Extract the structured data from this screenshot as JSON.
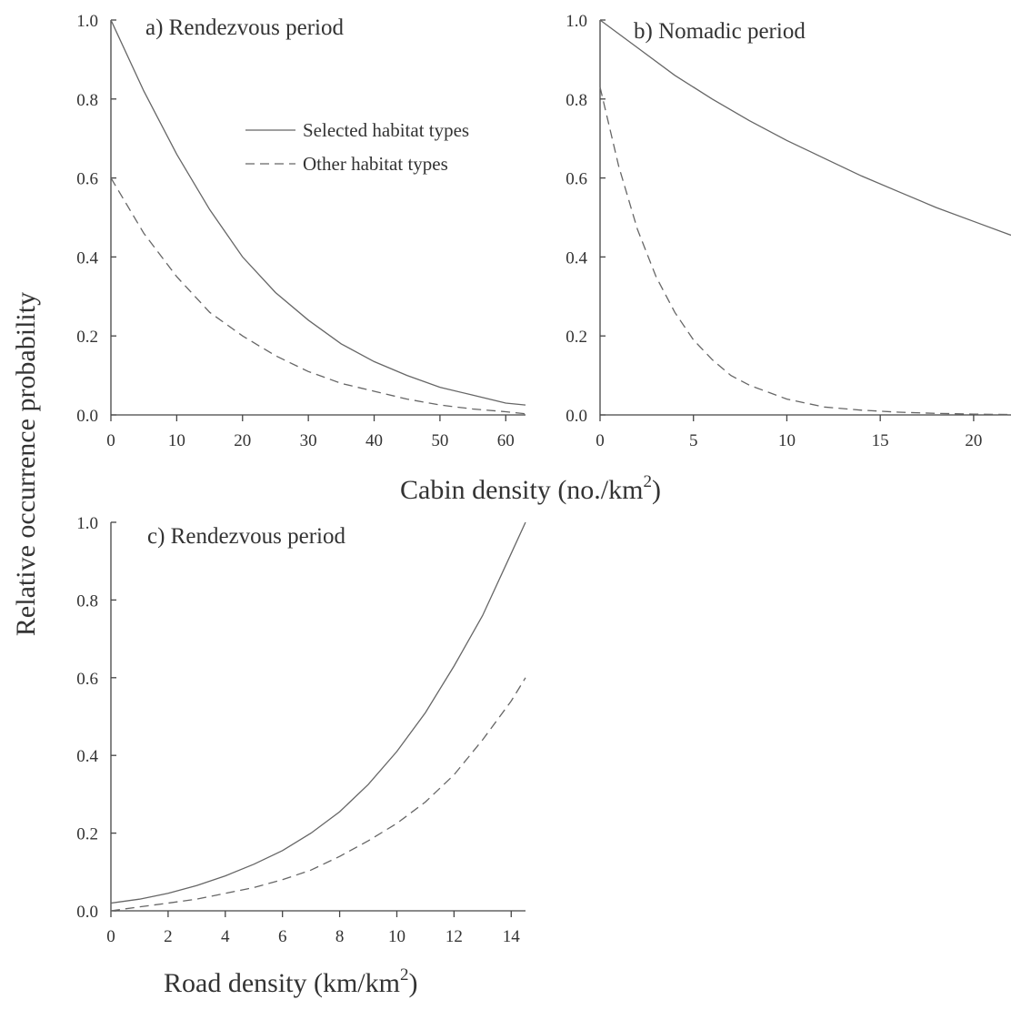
{
  "shared": {
    "ylabel": "Relative occurrence probability",
    "top_xlabel": "Cabin density (no./km",
    "top_xlabel_sup": "2",
    "top_xlabel_end": ")",
    "legend": {
      "solid": "Selected habitat types",
      "dashed": "Other habitat types"
    }
  },
  "chart_data": [
    {
      "type": "line",
      "title": "a) Rendezvous period",
      "xlim": [
        0,
        63
      ],
      "ylim": [
        0,
        1
      ],
      "xticks": [
        0,
        10,
        20,
        30,
        40,
        50,
        60
      ],
      "yticks": [
        "0.0",
        "0.2",
        "0.4",
        "0.6",
        "0.8",
        "1.0"
      ],
      "xlabel": "",
      "series": [
        {
          "name": "Selected habitat types",
          "style": "solid",
          "x": [
            0,
            5,
            10,
            15,
            20,
            25,
            30,
            35,
            40,
            45,
            50,
            55,
            60,
            63
          ],
          "y": [
            1.0,
            0.82,
            0.66,
            0.52,
            0.4,
            0.31,
            0.24,
            0.18,
            0.135,
            0.1,
            0.07,
            0.05,
            0.03,
            0.025
          ]
        },
        {
          "name": "Other habitat types",
          "style": "dashed",
          "x": [
            0,
            5,
            10,
            15,
            20,
            25,
            30,
            35,
            40,
            45,
            50,
            55,
            60,
            63
          ],
          "y": [
            0.6,
            0.46,
            0.35,
            0.26,
            0.2,
            0.15,
            0.11,
            0.08,
            0.06,
            0.04,
            0.025,
            0.015,
            0.008,
            0.003
          ]
        }
      ]
    },
    {
      "type": "line",
      "title": "b) Nomadic period",
      "xlim": [
        0,
        22
      ],
      "ylim": [
        0,
        1
      ],
      "xticks": [
        0,
        5,
        10,
        15,
        20
      ],
      "yticks": [
        "0.0",
        "0.2",
        "0.4",
        "0.6",
        "0.8",
        "1.0"
      ],
      "xlabel": "",
      "series": [
        {
          "name": "Selected habitat types",
          "style": "solid",
          "x": [
            0,
            2,
            4,
            6,
            8,
            10,
            12,
            14,
            16,
            18,
            20,
            22
          ],
          "y": [
            1.0,
            0.93,
            0.86,
            0.8,
            0.745,
            0.695,
            0.65,
            0.605,
            0.565,
            0.525,
            0.49,
            0.455
          ]
        },
        {
          "name": "Other habitat types",
          "style": "dashed",
          "x": [
            0,
            1,
            2,
            3,
            4,
            5,
            6,
            7,
            8,
            10,
            12,
            14,
            16,
            18,
            20,
            22
          ],
          "y": [
            0.83,
            0.63,
            0.47,
            0.35,
            0.26,
            0.19,
            0.14,
            0.1,
            0.075,
            0.04,
            0.02,
            0.012,
            0.007,
            0.004,
            0.002,
            0.001
          ]
        }
      ]
    },
    {
      "type": "line",
      "title": "c) Rendezvous period",
      "xlim": [
        0,
        14.5
      ],
      "ylim": [
        0,
        1
      ],
      "xticks": [
        0,
        2,
        4,
        6,
        8,
        10,
        12,
        14
      ],
      "yticks": [
        "0.0",
        "0.2",
        "0.4",
        "0.6",
        "0.8",
        "1.0"
      ],
      "xlabel": "Road density (km/km",
      "xlabel_sup": "2",
      "xlabel_end": ")",
      "series": [
        {
          "name": "Selected habitat types",
          "style": "solid",
          "x": [
            0,
            1,
            2,
            3,
            4,
            5,
            6,
            7,
            8,
            9,
            10,
            11,
            12,
            13,
            14,
            14.5
          ],
          "y": [
            0.02,
            0.03,
            0.045,
            0.065,
            0.09,
            0.12,
            0.155,
            0.2,
            0.255,
            0.325,
            0.41,
            0.51,
            0.63,
            0.76,
            0.92,
            1.0
          ]
        },
        {
          "name": "Other habitat types",
          "style": "dashed",
          "x": [
            0,
            1,
            2,
            3,
            4,
            5,
            6,
            7,
            8,
            9,
            10,
            11,
            12,
            13,
            14,
            14.5
          ],
          "y": [
            0.0,
            0.01,
            0.02,
            0.03,
            0.045,
            0.06,
            0.08,
            0.105,
            0.14,
            0.18,
            0.225,
            0.28,
            0.35,
            0.44,
            0.54,
            0.6
          ]
        }
      ]
    }
  ]
}
